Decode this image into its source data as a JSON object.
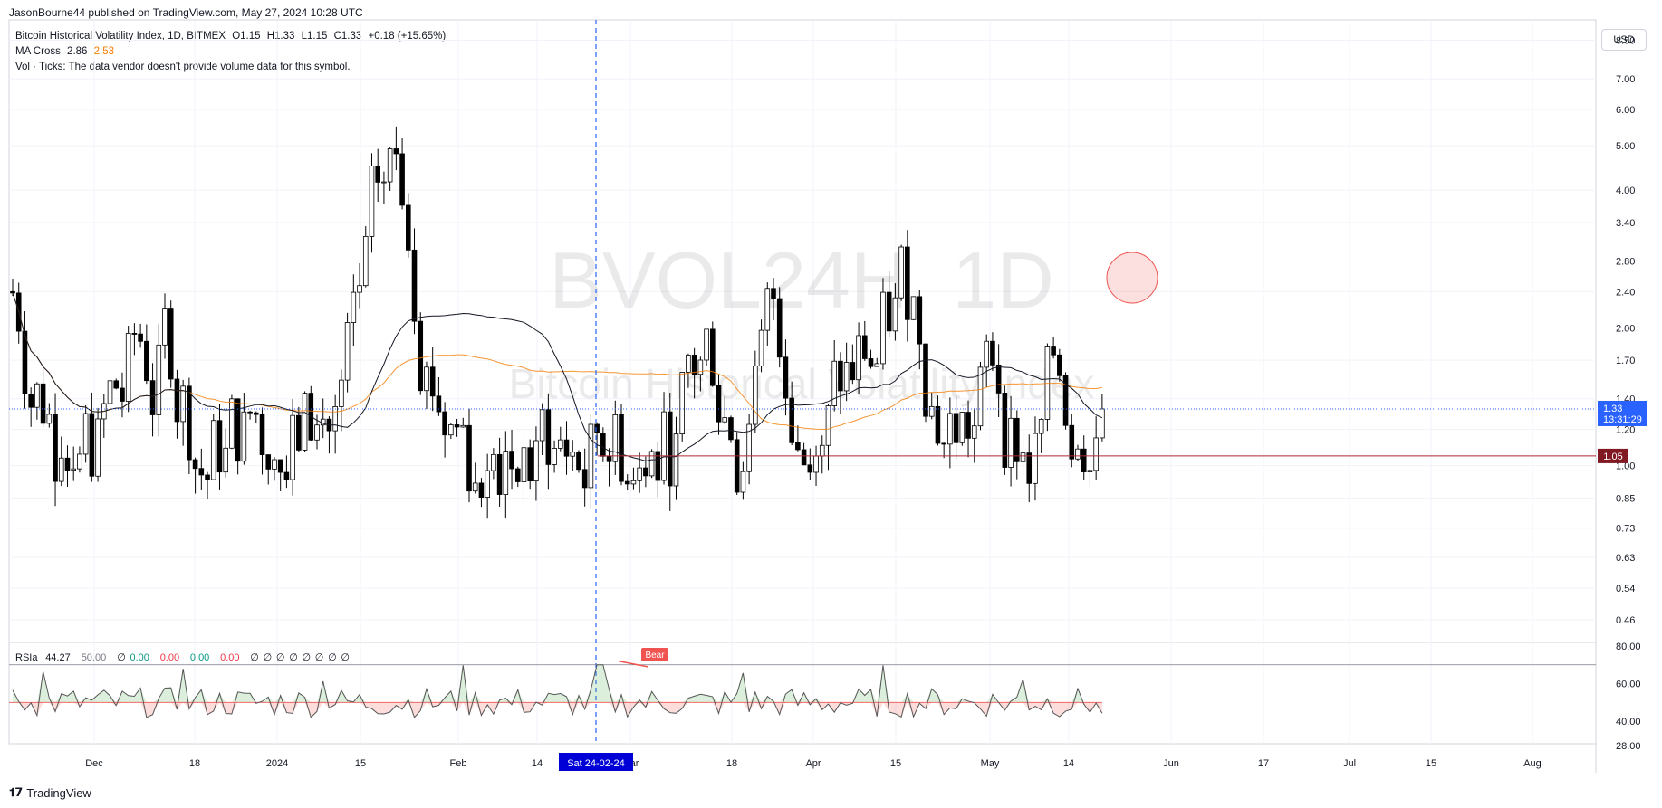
{
  "header": {
    "published_line": "JasonBourne44 published on TradingView.com, May 27, 2024 10:28 UTC"
  },
  "legend": {
    "symbol_line": {
      "name": "Bitcoin Historical Volatility Index, 1D, BITMEX",
      "o": "O1.15",
      "h": "H1.33",
      "l": "L1.15",
      "c": "C1.33",
      "chg": "+0.18 (+15.65%)"
    },
    "ma_cross": {
      "label": "MA Cross",
      "v1": "2.86",
      "v2": "2.53",
      "v1_color": "#131722",
      "v2_color": "#f57c00"
    },
    "vol_line": "Vol · Ticks: The data vendor doesn't provide volume data for this symbol."
  },
  "watermark": {
    "ticker": "BVOL24H, 1D",
    "desc": "Bitcoin Historical Volatility Index"
  },
  "currency_button": "USD",
  "price_axis": {
    "labels": [
      "8.50",
      "7.00",
      "6.00",
      "5.00",
      "4.00",
      "3.40",
      "2.80",
      "2.40",
      "2.00",
      "1.70",
      "1.40",
      "1.20",
      "1.00",
      "0.85",
      "0.73",
      "0.63",
      "0.54",
      "0.46"
    ],
    "current_price": "1.33",
    "countdown": "13:31:29",
    "support_price": "1.05",
    "current_color": "#2962ff",
    "support_color": "#801922"
  },
  "rsi": {
    "legend": {
      "name": "RSIa",
      "v1": "44.27",
      "v2": "50.00",
      "values": [
        "∅",
        "0.00",
        "0.00",
        "0.00",
        "0.00",
        "∅",
        "∅",
        "∅",
        "∅",
        "∅",
        "∅",
        "∅",
        "∅"
      ]
    },
    "axis_labels": [
      "80.00",
      "60.00",
      "40.00",
      "28.00"
    ],
    "bear_label": "Bear",
    "bear_color": "#f05350"
  },
  "time_axis": {
    "labels": [
      "Dec",
      "18",
      "2024",
      "15",
      "Feb",
      "14",
      "Mar",
      "18",
      "Apr",
      "15",
      "May",
      "14",
      "Jun",
      "17",
      "Jul",
      "15",
      "Aug"
    ],
    "cursor_label": "Sat 24-02-24"
  },
  "footer": {
    "brand": "TradingView"
  },
  "chart_data": {
    "type": "candlestick",
    "scale": "log",
    "ylim": [
      0.43,
      9.0
    ],
    "support_level": 1.05,
    "last_price": 1.33,
    "ma_cross": {
      "ma_fast_last": 2.86,
      "ma_slow_last": 2.53
    },
    "rsi_last": 44.27,
    "rsi_levels": [
      70,
      50
    ]
  }
}
